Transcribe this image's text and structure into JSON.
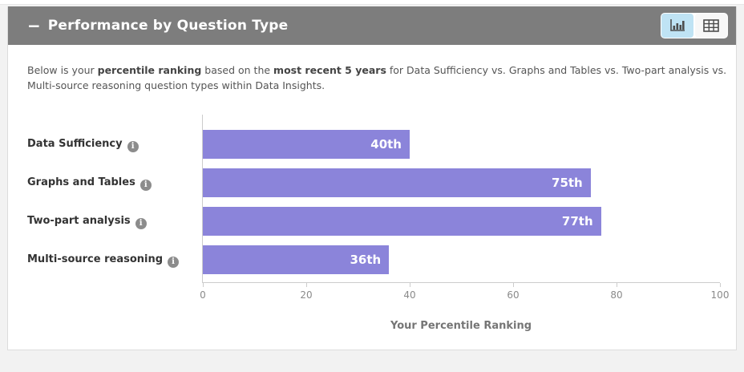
{
  "panel": {
    "title": "Performance by Question Type",
    "collapse_icon": "−",
    "view_toggle": {
      "chart_button_icon": "bar-chart-icon",
      "table_button_icon": "table-grid-icon",
      "active": "chart"
    }
  },
  "description": {
    "part1": "Below is your ",
    "bold1": "percentile ranking",
    "part2": " based on the ",
    "bold2": "most recent 5 years",
    "part3": " for Data Sufficiency vs. Graphs and Tables vs. Two-part analysis vs. Multi-source reasoning question types within Data Insights."
  },
  "info_icon_glyph": "i",
  "chart_data": {
    "type": "bar",
    "orientation": "horizontal",
    "categories": [
      "Data Sufficiency",
      "Graphs and Tables",
      "Two-part analysis",
      "Multi-source reasoning"
    ],
    "values": [
      40,
      75,
      77,
      36
    ],
    "value_labels": [
      "40th",
      "75th",
      "77th",
      "36th"
    ],
    "xticks": [
      "0",
      "20",
      "40",
      "60",
      "80",
      "100"
    ],
    "xlim": [
      0,
      100
    ],
    "xlabel": "Your Percentile Ranking",
    "bar_color": "#8b84da",
    "grid": false,
    "legend": "none"
  },
  "colors": {
    "header_bg": "#7d7d7d",
    "active_toggle_bg": "#bfe3f4",
    "bar": "#8b84da",
    "axis": "#cccccc"
  }
}
